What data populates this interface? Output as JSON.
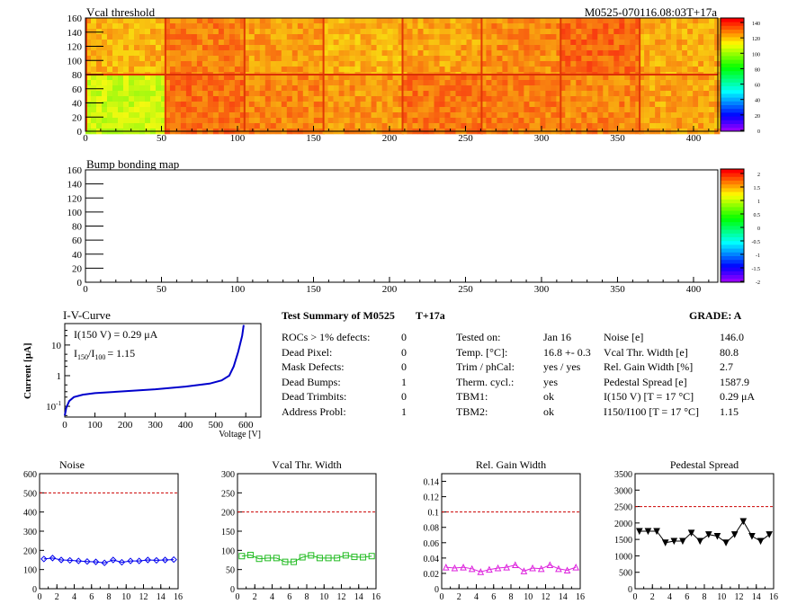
{
  "maps": [
    {
      "title": "Vcal threshold",
      "module_tag": "M0525-070116.08:03T+17a",
      "x_ticks": [
        0,
        50,
        100,
        150,
        200,
        250,
        300,
        350,
        400
      ],
      "y_ticks": [
        0,
        20,
        40,
        60,
        80,
        100,
        120,
        140,
        160
      ],
      "palette_labels": [
        "0",
        "20",
        "40",
        "60",
        "80",
        "100",
        "120",
        "140"
      ]
    },
    {
      "title": "Bump bonding map",
      "x_ticks": [
        0,
        50,
        100,
        150,
        200,
        250,
        300,
        350,
        400
      ],
      "y_ticks": [
        0,
        20,
        40,
        60,
        80,
        100,
        120,
        140,
        160
      ],
      "palette_labels": [
        "-2",
        "-1.5",
        "-1",
        "-0.5",
        "0",
        "0.5",
        "1",
        "1.5",
        "2"
      ]
    }
  ],
  "iv": {
    "title": "I-V-Curve",
    "annotation_1": "I(150 V) = 0.29 μA",
    "annotation_2_pre": "I",
    "annotation_2_sub1": "150",
    "annotation_2_mid": "/I",
    "annotation_2_sub2": "100",
    "annotation_2_post": "=  1.15",
    "ylabel": "Current [μA]",
    "xlabel": "Voltage [V]",
    "x_ticks": [
      0,
      100,
      200,
      300,
      400,
      500,
      600
    ],
    "y_tick_labels": [
      "10",
      "1",
      "10"
    ],
    "y_tick_exp": [
      "",
      "",
      "-1"
    ]
  },
  "summary": {
    "heading": "Test Summary of M0525",
    "temp_label": "T+17a",
    "grade": "GRADE:  A",
    "defects": [
      {
        "label": "ROCs > 1% defects:",
        "value": "0"
      },
      {
        "label": "Dead Pixel:",
        "value": "0"
      },
      {
        "label": "Mask Defects:",
        "value": "0"
      },
      {
        "label": "Dead Bumps:",
        "value": "1"
      },
      {
        "label": "Dead Trimbits:",
        "value": "0"
      },
      {
        "label": "Address Probl:",
        "value": "1"
      }
    ],
    "conditions": [
      {
        "label": "Tested on:",
        "value": "Jan 16"
      },
      {
        "label": "Temp. [°C]:",
        "value": "16.8 +- 0.3"
      },
      {
        "label": "Trim / phCal:",
        "value": "yes / yes"
      },
      {
        "label": "Therm. cycl.:",
        "value": "yes"
      },
      {
        "label": "TBM1:",
        "value": "ok"
      },
      {
        "label": "TBM2:",
        "value": "ok"
      }
    ],
    "metrics": [
      {
        "label": "Noise [e]",
        "value": "146.0"
      },
      {
        "label": "Vcal Thr. Width [e]",
        "value": "80.8"
      },
      {
        "label": "Rel. Gain Width [%]",
        "value": "2.7"
      },
      {
        "label": "Pedestal Spread [e]",
        "value": "1587.9"
      },
      {
        "label": "I(150 V) [T = 17 °C]",
        "value": "0.29 μA"
      },
      {
        "label": "I150/I100  [T = 17 °C]",
        "value": "1.15"
      }
    ]
  },
  "chart_data": [
    {
      "type": "line",
      "title": "Noise",
      "x": [
        0,
        1,
        2,
        3,
        4,
        5,
        6,
        7,
        8,
        9,
        10,
        11,
        12,
        13,
        14,
        15
      ],
      "values": [
        155,
        160,
        150,
        148,
        145,
        142,
        140,
        135,
        150,
        138,
        145,
        145,
        150,
        148,
        150,
        152
      ],
      "threshold": 500,
      "xlim": [
        0,
        16
      ],
      "ylim": [
        0,
        600
      ],
      "x_ticks": [
        0,
        2,
        4,
        6,
        8,
        10,
        12,
        14,
        16
      ],
      "y_ticks": [
        0,
        100,
        200,
        300,
        400,
        500,
        600
      ],
      "color": "#0000ee",
      "marker": "diamond"
    },
    {
      "type": "line",
      "title": "Vcal Thr. Width",
      "x": [
        0,
        1,
        2,
        3,
        4,
        5,
        6,
        7,
        8,
        9,
        10,
        11,
        12,
        13,
        14,
        15
      ],
      "values": [
        85,
        88,
        78,
        80,
        80,
        70,
        70,
        82,
        87,
        80,
        80,
        80,
        87,
        83,
        82,
        85
      ],
      "threshold": 200,
      "xlim": [
        0,
        16
      ],
      "ylim": [
        0,
        300
      ],
      "x_ticks": [
        0,
        2,
        4,
        6,
        8,
        10,
        12,
        14,
        16
      ],
      "y_ticks": [
        0,
        50,
        100,
        150,
        200,
        250,
        300
      ],
      "color": "#22bb22",
      "marker": "square"
    },
    {
      "type": "line",
      "title": "Rel. Gain Width",
      "x": [
        0,
        1,
        2,
        3,
        4,
        5,
        6,
        7,
        8,
        9,
        10,
        11,
        12,
        13,
        14,
        15
      ],
      "values": [
        0.028,
        0.027,
        0.028,
        0.026,
        0.022,
        0.025,
        0.027,
        0.028,
        0.031,
        0.023,
        0.027,
        0.026,
        0.031,
        0.026,
        0.024,
        0.028
      ],
      "threshold": 0.1,
      "xlim": [
        0,
        16
      ],
      "ylim": [
        0,
        0.15
      ],
      "x_ticks": [
        0,
        2,
        4,
        6,
        8,
        10,
        12,
        14,
        16
      ],
      "y_ticks": [
        0,
        0.02,
        0.04,
        0.06,
        0.08,
        0.1,
        0.12,
        0.14
      ],
      "color": "#dd22dd",
      "marker": "triangle"
    },
    {
      "type": "line",
      "title": "Pedestal Spread",
      "x": [
        0,
        1,
        2,
        3,
        4,
        5,
        6,
        7,
        8,
        9,
        10,
        11,
        12,
        13,
        14,
        15
      ],
      "values": [
        1750,
        1750,
        1750,
        1400,
        1450,
        1450,
        1700,
        1450,
        1650,
        1600,
        1400,
        1650,
        2050,
        1600,
        1450,
        1650
      ],
      "threshold": 2500,
      "xlim": [
        0,
        16
      ],
      "ylim": [
        0,
        3500
      ],
      "x_ticks": [
        0,
        2,
        4,
        6,
        8,
        10,
        12,
        14,
        16
      ],
      "y_ticks": [
        0,
        500,
        1000,
        1500,
        2000,
        2500,
        3000,
        3500
      ],
      "color": "#000000",
      "marker": "triangle-down"
    }
  ]
}
